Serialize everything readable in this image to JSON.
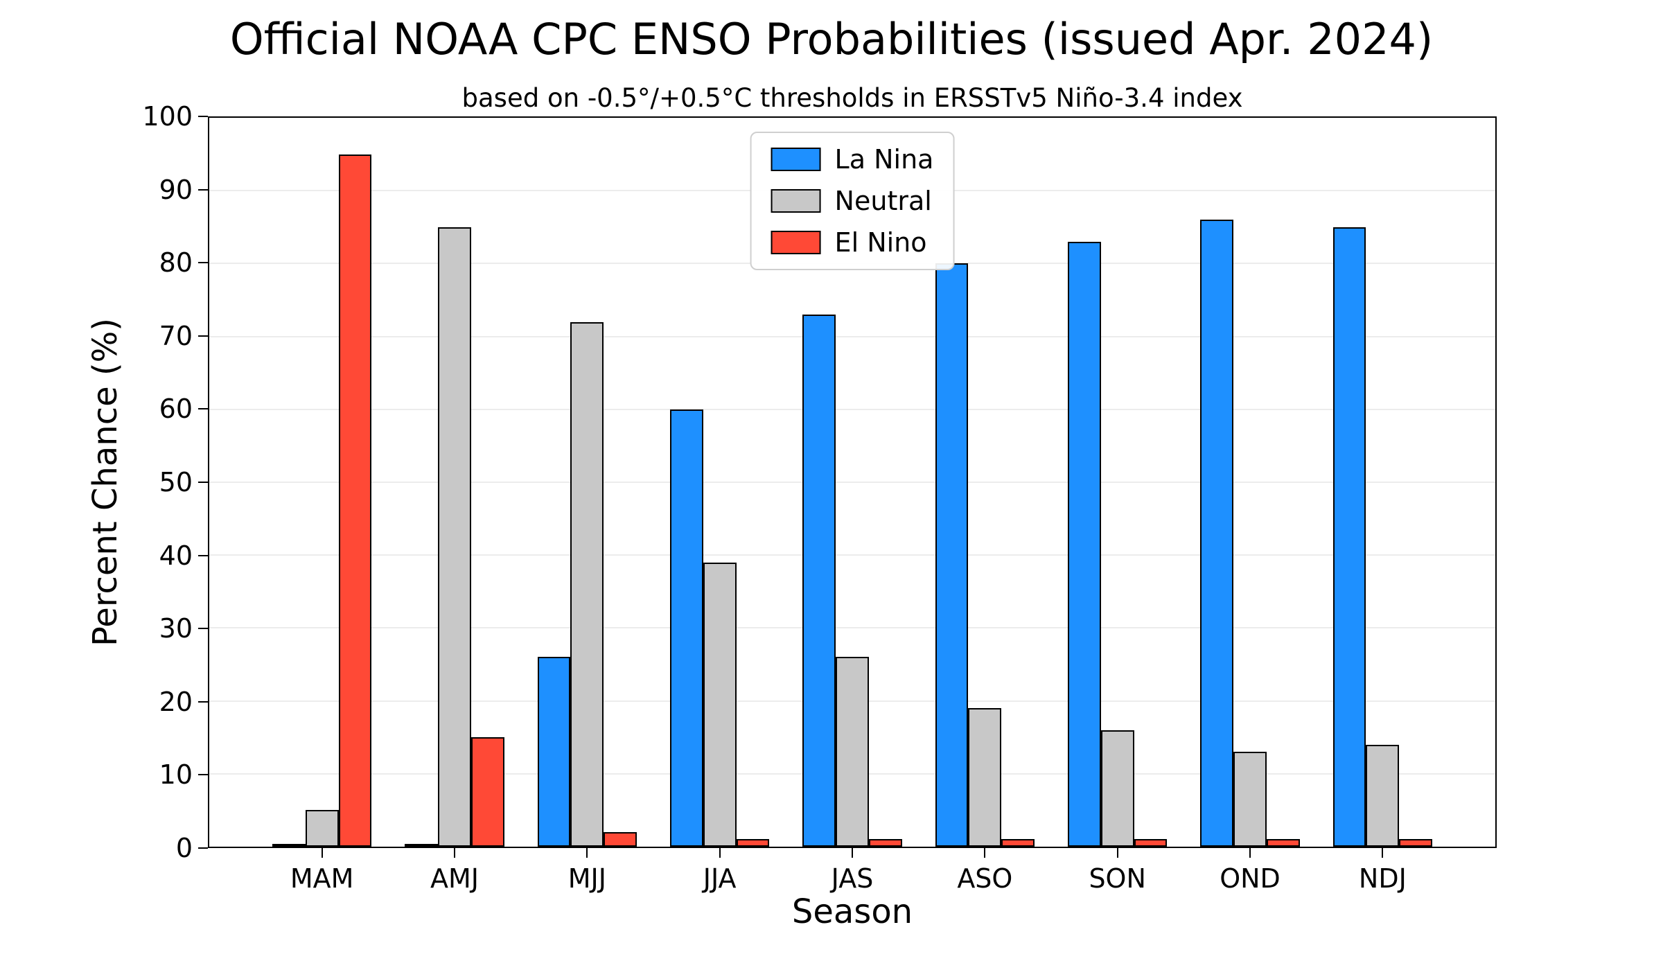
{
  "chart_data": {
    "type": "bar",
    "title": "Official NOAA CPC ENSO Probabilities (issued Apr. 2024)",
    "subtitle": "based on -0.5°/+0.5°C thresholds in ERSSTv5 Niño-3.4 index",
    "xlabel": "Season",
    "ylabel": "Percent Chance (%)",
    "ylim": [
      0,
      100
    ],
    "ytick_interval": 10,
    "grid": true,
    "legend_position": "upper center",
    "categories": [
      "MAM",
      "AMJ",
      "MJJ",
      "JJA",
      "JAS",
      "ASO",
      "SON",
      "OND",
      "NDJ"
    ],
    "series": [
      {
        "name": "La Nina",
        "color": "#1E90FF",
        "values": [
          0,
          0,
          26,
          60,
          73,
          80,
          83,
          86,
          85
        ]
      },
      {
        "name": "Neutral",
        "color": "#C8C8C8",
        "values": [
          5,
          85,
          72,
          39,
          26,
          19,
          16,
          13,
          14
        ]
      },
      {
        "name": "El Nino",
        "color": "#FF4936",
        "values": [
          95,
          15,
          2,
          1,
          1,
          1,
          1,
          1,
          1
        ]
      }
    ]
  }
}
